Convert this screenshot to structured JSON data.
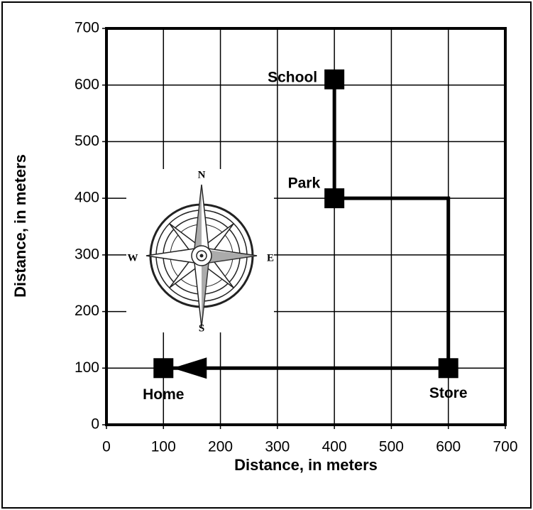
{
  "chart_data": {
    "type": "scatter",
    "x_label": "Distance, in meters",
    "y_label": "Distance, in meters",
    "labels": [
      "School",
      "Park",
      "Store",
      "Home"
    ],
    "x": [
      400,
      400,
      600,
      100
    ],
    "values": [
      610,
      400,
      100,
      100
    ],
    "color": "#000000",
    "xlim": [
      0,
      700
    ],
    "ylim": [
      0,
      700
    ],
    "xticks": [
      0,
      100,
      200,
      300,
      400,
      500,
      600,
      700
    ],
    "yticks": [
      0,
      100,
      200,
      300,
      400,
      500,
      600,
      700
    ],
    "grid": true,
    "compass_labels": [
      "N",
      "E",
      "S",
      "W"
    ]
  }
}
